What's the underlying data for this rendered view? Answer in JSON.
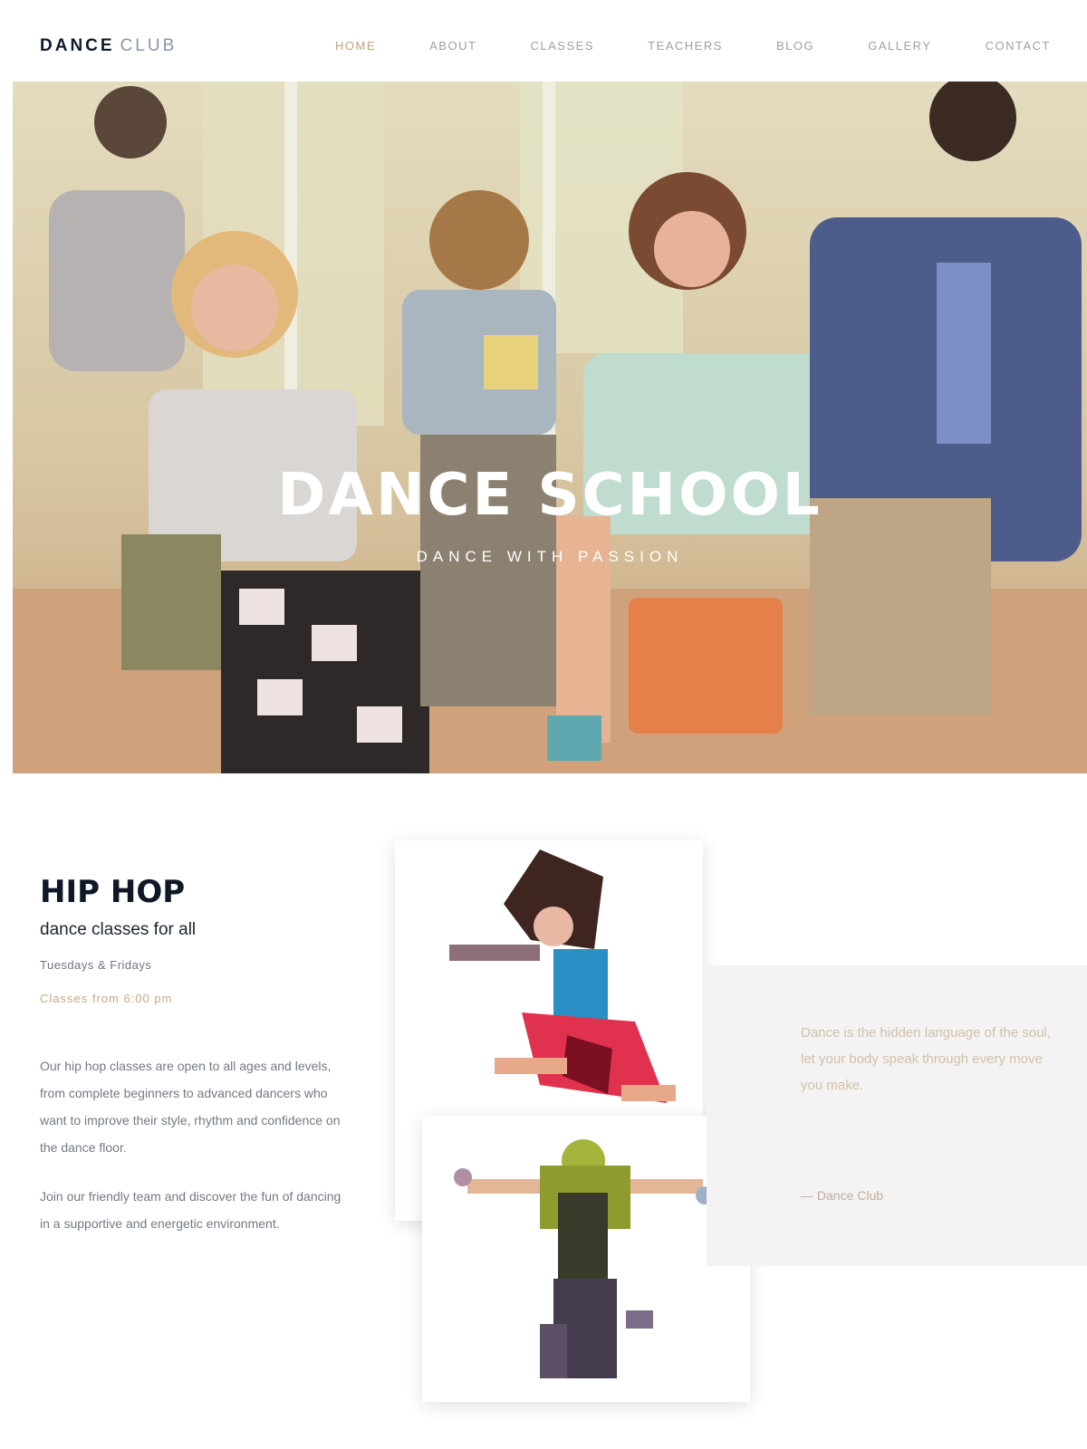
{
  "brand": {
    "main": "DANCE",
    "sub": "CLUB"
  },
  "nav": [
    {
      "label": "Home",
      "active": true
    },
    {
      "label": "About",
      "active": false
    },
    {
      "label": "Classes",
      "active": false
    },
    {
      "label": "Teachers",
      "active": false
    },
    {
      "label": "Blog",
      "active": false
    },
    {
      "label": "Gallery",
      "active": false
    },
    {
      "label": "Contact",
      "active": false
    }
  ],
  "hero": {
    "title": "DANCE SCHOOL",
    "subtitle": "DANCE WITH PASSION"
  },
  "intro": {
    "heading": "HIP HOP",
    "subheading": "dance classes for all",
    "meta": "Tuesdays & Fridays",
    "accent": "Classes from 6:00 pm",
    "text": "Our hip hop classes are open to all ages and levels, from complete beginners to advanced dancers who want to improve their style, rhythm and confidence on the dance floor.",
    "text2": "Join our friendly team and discover the fun of dancing in a supportive and energetic environment."
  },
  "panel": {
    "text": "Dance is the hidden language of the soul, let your body speak through every move you make.",
    "signature": "— Dance Club"
  },
  "colors": {
    "accent": "#c1a27a",
    "heading": "#0e1827",
    "panel_bg": "#f4f2f3"
  }
}
